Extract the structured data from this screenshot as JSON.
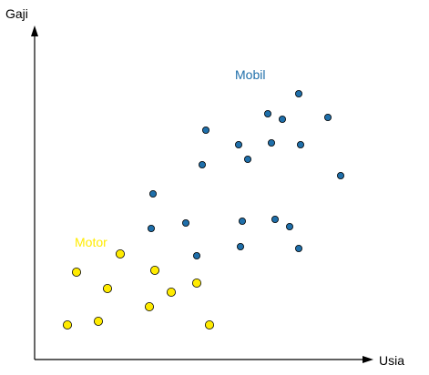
{
  "chart_data": {
    "type": "scatter",
    "xlabel": "Usia",
    "ylabel": "Gaji",
    "xlim": [
      0,
      100
    ],
    "ylim": [
      0,
      100
    ],
    "grid": false,
    "legend": "none",
    "series": [
      {
        "name": "Mobil",
        "color": "#1f6faa",
        "points": [
          {
            "x": 32.0,
            "y": 36.0
          },
          {
            "x": 32.5,
            "y": 45.5
          },
          {
            "x": 41.5,
            "y": 37.5
          },
          {
            "x": 44.5,
            "y": 28.5
          },
          {
            "x": 46.0,
            "y": 53.5
          },
          {
            "x": 47.0,
            "y": 63.0
          },
          {
            "x": 56.5,
            "y": 31.0
          },
          {
            "x": 57.0,
            "y": 38.0
          },
          {
            "x": 56.0,
            "y": 59.0
          },
          {
            "x": 58.5,
            "y": 55.0
          },
          {
            "x": 64.0,
            "y": 67.5
          },
          {
            "x": 65.0,
            "y": 59.5
          },
          {
            "x": 66.0,
            "y": 38.5
          },
          {
            "x": 68.0,
            "y": 66.0
          },
          {
            "x": 70.0,
            "y": 36.5
          },
          {
            "x": 72.5,
            "y": 30.5
          },
          {
            "x": 73.0,
            "y": 59.0
          },
          {
            "x": 72.5,
            "y": 73.0
          },
          {
            "x": 80.5,
            "y": 66.5
          },
          {
            "x": 84.0,
            "y": 50.5
          }
        ]
      },
      {
        "name": "Motor",
        "color": "#ffeb00",
        "points": [
          {
            "x": 9.0,
            "y": 9.5
          },
          {
            "x": 11.5,
            "y": 24.0
          },
          {
            "x": 17.5,
            "y": 10.5
          },
          {
            "x": 20.0,
            "y": 19.5
          },
          {
            "x": 23.5,
            "y": 29.0
          },
          {
            "x": 31.5,
            "y": 14.5
          },
          {
            "x": 33.0,
            "y": 24.5
          },
          {
            "x": 37.5,
            "y": 18.5
          },
          {
            "x": 44.5,
            "y": 21.0
          },
          {
            "x": 48.0,
            "y": 9.5
          }
        ]
      }
    ],
    "annotations": [
      {
        "text": "Mobil",
        "series": "Mobil",
        "x": 55,
        "y": 77
      },
      {
        "text": "Motor",
        "series": "Motor",
        "x": 11,
        "y": 31
      }
    ]
  }
}
